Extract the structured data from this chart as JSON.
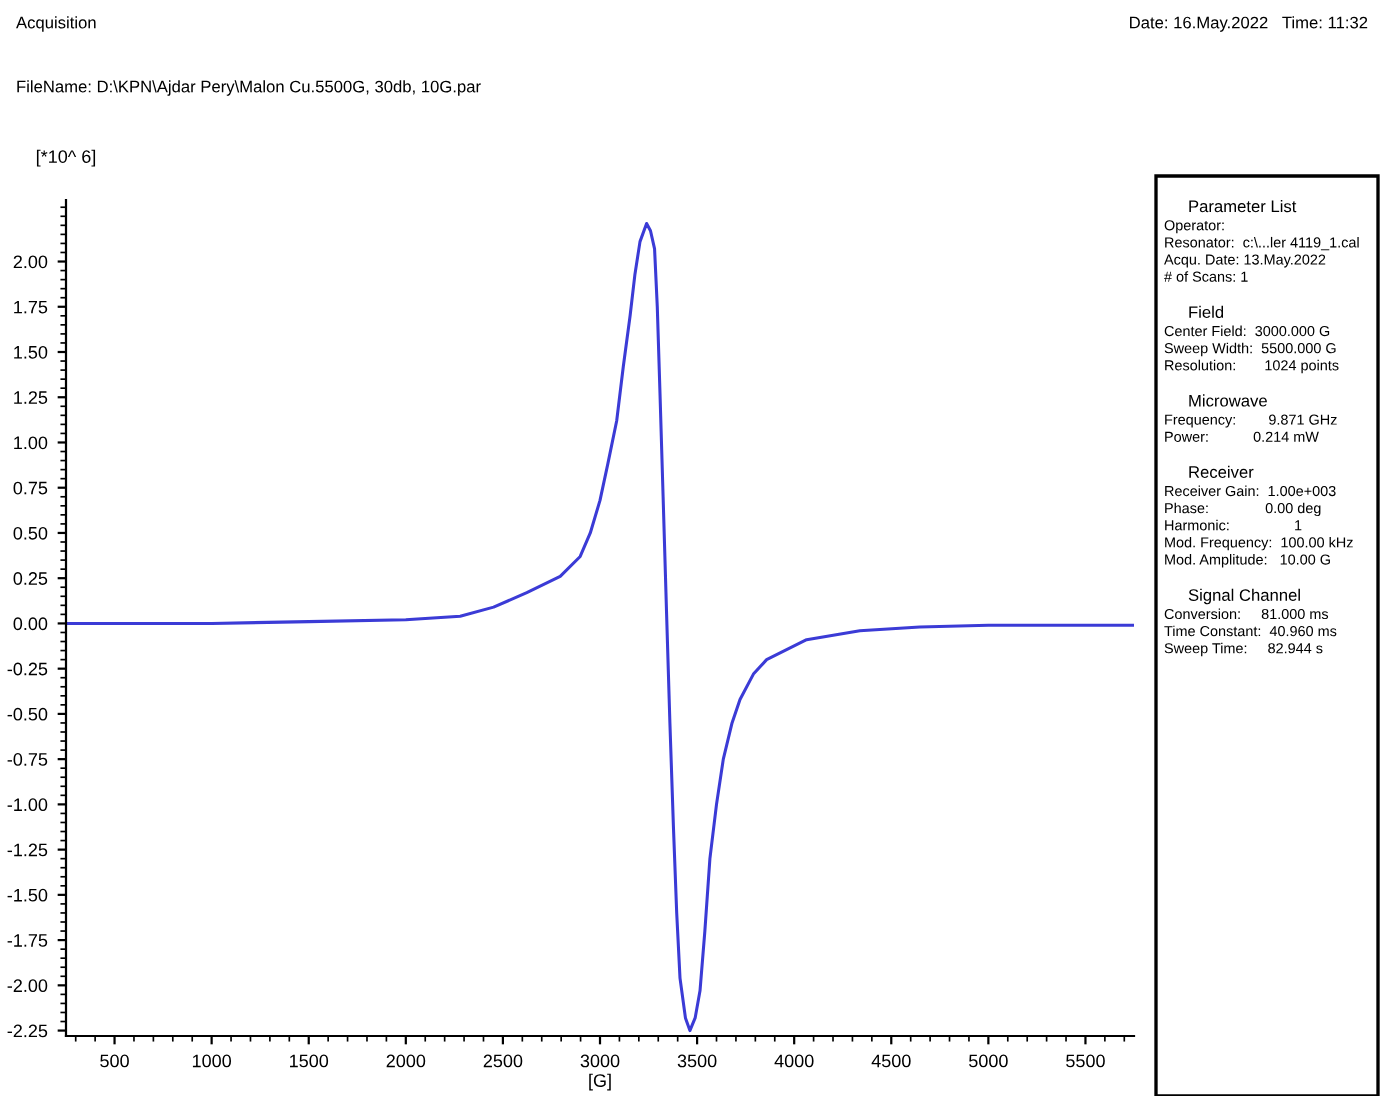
{
  "chart_data": {
    "type": "line",
    "xlabel": "[G]",
    "ylabel": "[*10^ 6]",
    "series": [
      {
        "color": "#3b3bd6",
        "x": [
          250,
          1000,
          1500,
          2000,
          2280,
          2452,
          2623,
          2795,
          2898,
          2950,
          3000,
          3040,
          3086,
          3120,
          3155,
          3180,
          3206,
          3240,
          3260,
          3281,
          3295,
          3309,
          3325,
          3343,
          3360,
          3378,
          3395,
          3412,
          3440,
          3463,
          3490,
          3515,
          3540,
          3566,
          3600,
          3635,
          3680,
          3721,
          3790,
          3858,
          4064,
          4338,
          4647,
          5000,
          5750
        ],
        "values": [
          0.0,
          0.0,
          0.01,
          0.02,
          0.04,
          0.09,
          0.17,
          0.26,
          0.37,
          0.5,
          0.68,
          0.88,
          1.12,
          1.42,
          1.7,
          1.93,
          2.11,
          2.21,
          2.17,
          2.07,
          1.75,
          1.27,
          0.7,
          0.05,
          -0.55,
          -1.12,
          -1.6,
          -1.96,
          -2.18,
          -2.25,
          -2.18,
          -2.03,
          -1.7,
          -1.3,
          -1.0,
          -0.75,
          -0.55,
          -0.42,
          -0.28,
          -0.2,
          -0.09,
          -0.04,
          -0.02,
          -0.01,
          -0.01
        ]
      }
    ],
    "xlim": [
      250,
      5750
    ],
    "xticks": [
      500,
      1000,
      1500,
      2000,
      2500,
      3000,
      3500,
      4000,
      4500,
      5000,
      5500
    ],
    "ylim": [
      -2.28,
      2.34
    ],
    "yticks": [
      {
        "value": -2.25,
        "label": "-2.25"
      },
      {
        "value": -2.0,
        "label": "-2.00"
      },
      {
        "value": -1.75,
        "label": "-1.75"
      },
      {
        "value": -1.5,
        "label": "-1.50"
      },
      {
        "value": -1.25,
        "label": "-1.25"
      },
      {
        "value": -1.0,
        "label": "-1.00"
      },
      {
        "value": -0.75,
        "label": "-0.75"
      },
      {
        "value": -0.5,
        "label": "-0.50"
      },
      {
        "value": -0.25,
        "label": "-0.25"
      },
      {
        "value": 0,
        "label": "0.00"
      },
      {
        "value": 0.25,
        "label": "0.25"
      },
      {
        "value": 0.5,
        "label": "0.50"
      },
      {
        "value": 0.75,
        "label": "0.75"
      },
      {
        "value": 1.0,
        "label": "1.00"
      },
      {
        "value": 1.25,
        "label": "1.25"
      },
      {
        "value": 1.5,
        "label": "1.50"
      },
      {
        "value": 1.75,
        "label": "1.75"
      },
      {
        "value": 2.0,
        "label": "2.00"
      }
    ],
    "grid": false,
    "legend": false,
    "marker": "none",
    "line_style": "solid",
    "annotations": [
      "Acquisition",
      "FileName: D:\\KPN\\Ajdar Pery\\Malon Cu.5500G, 30db, 10G.par",
      "Date: 16.May.2022   Time: 11:32",
      "Parameter List",
      "Operator:\nResonator:  c:\\...ler 4119_1.cal\nAcqu. Date: 13.May.2022\n# of Scans: 1",
      "Field",
      "Center Field:  3000.000 G\nSweep Width:  5500.000 G\nResolution:       1024 points",
      "Microwave",
      "Frequency:        9.871 GHz\nPower:           0.214 mW",
      "Receiver",
      "Receiver Gain:  1.00e+003\nPhase:              0.00 deg\nHarmonic:                1\nMod. Frequency:  100.00 kHz\nMod. Amplitude:   10.00 G",
      "Signal Channel",
      "Conversion:     81.000 ms\nTime Constant:  40.960 ms\nSweep Time:     82.944 s"
    ]
  }
}
